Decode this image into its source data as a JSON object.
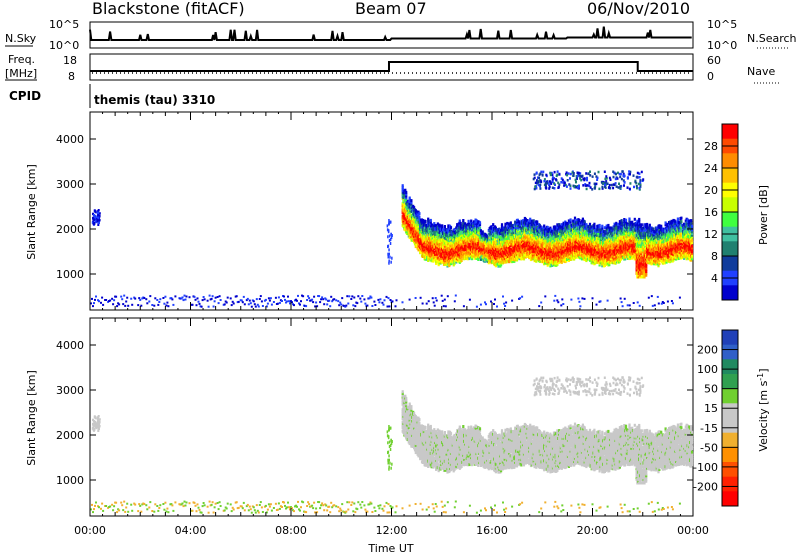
{
  "header": {
    "station": "Blackstone (fitACF)",
    "beam": "Beam 07",
    "date": "06/Nov/2010"
  },
  "summary": {
    "nsky_label": "N.Sky",
    "nsearch_label": "N.Search",
    "freq_label_line1": "Freq.",
    "freq_label_line2": "[MHz]",
    "nave_label": "Nave",
    "cpid_label": "CPID",
    "cpid_text": "themis (tau) 3310",
    "nsky_ticks": [
      "10^5",
      "10^0"
    ],
    "nsearch_ticks": [
      "10^5",
      "10^0"
    ],
    "freq_ticks": [
      "18",
      "8"
    ],
    "nave_ticks": [
      "60",
      "0"
    ]
  },
  "colorbars": {
    "power": {
      "label": "Power [dB]",
      "ticks": [
        "28",
        "24",
        "20",
        "16",
        "12",
        "8",
        "4"
      ],
      "colors": [
        "#ff0000",
        "#ff4a00",
        "#ff8c00",
        "#ffc000",
        "#ffff00",
        "#c8ff00",
        "#40ff40",
        "#40c0a0",
        "#208070",
        "#103c9c",
        "#2040ff",
        "#0000cd"
      ]
    },
    "velocity": {
      "label": "Velocity [m s^-1]",
      "ticks": [
        "200",
        "100",
        "50",
        "15",
        "-15",
        "-50",
        "-100",
        "-200"
      ],
      "colors": [
        "#2040b8",
        "#3060c8",
        "#208a60",
        "#30a050",
        "#70d030",
        "#c8c8c8",
        "#c8c8c8",
        "#f0b030",
        "#ff9000",
        "#ff5000",
        "#ff2000",
        "#ff0000"
      ]
    }
  },
  "chart_data": [
    {
      "type": "heatmap",
      "name": "power-panel",
      "ylabel": "Slant Range [km]",
      "yticks": [
        1000,
        2000,
        3000,
        4000
      ],
      "ylim": [
        200,
        4600
      ],
      "xlim": [
        0,
        24
      ]
    },
    {
      "type": "heatmap",
      "name": "velocity-panel",
      "ylabel": "Slant Range [km]",
      "yticks": [
        1000,
        2000,
        3000,
        4000
      ],
      "ylim": [
        200,
        4600
      ],
      "xlim": [
        0,
        24
      ],
      "xlabel": "Time UT",
      "xtick_labels": [
        "00:00",
        "04:00",
        "08:00",
        "12:00",
        "16:00",
        "20:00",
        "00:00"
      ]
    }
  ]
}
